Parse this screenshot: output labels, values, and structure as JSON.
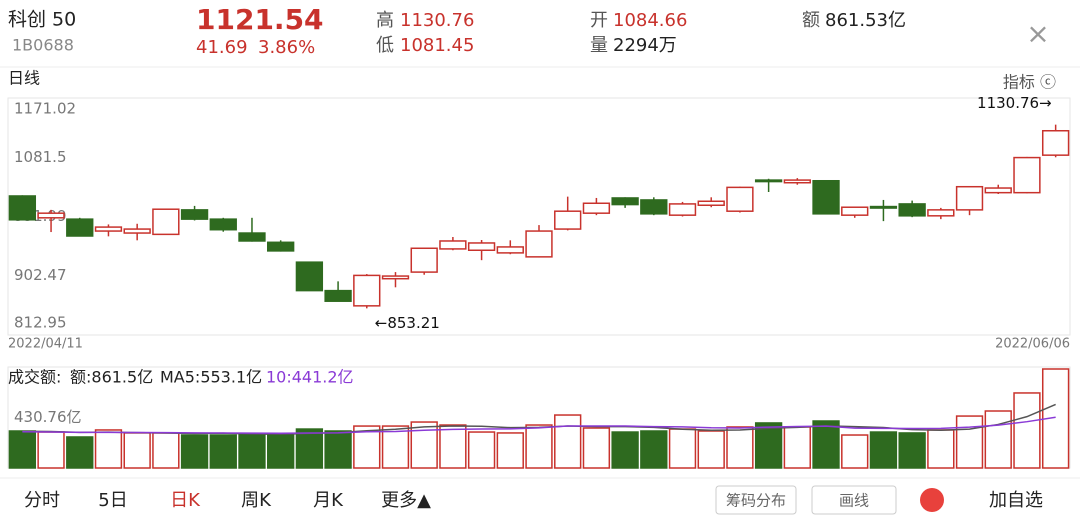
{
  "header": {
    "name": "科创 50",
    "code": "1B0688",
    "price": "1121.54",
    "change": "41.69",
    "change_pct": "3.86%",
    "high_label": "高",
    "high": "1130.76",
    "low_label": "低",
    "low": "1081.45",
    "open_label": "开",
    "open": "1084.66",
    "volume_label": "量",
    "volume": "2294万",
    "amount_label": "额",
    "amount": "861.53亿",
    "close": "×"
  },
  "period_label": "日线",
  "indicator_label": "指标 ⓒ",
  "chart_data": [
    {
      "type": "candlestick",
      "categories": [
        "2022/04/11",
        null,
        null,
        null,
        null,
        null,
        null,
        null,
        null,
        null,
        null,
        null,
        null,
        null,
        null,
        null,
        null,
        null,
        null,
        null,
        null,
        null,
        null,
        null,
        null,
        null,
        null,
        null,
        null,
        null,
        null,
        null,
        null,
        null,
        null,
        null,
        "2022/06/06"
      ],
      "open": [
        1023,
        990,
        988,
        970,
        967,
        965,
        1002,
        988,
        967,
        953,
        923,
        880,
        857,
        898,
        908,
        943,
        941,
        937,
        931,
        973,
        997,
        1020,
        1017,
        994,
        1009,
        1000,
        1047,
        1043,
        1046,
        994,
        1007,
        1011,
        993,
        1002,
        1028,
        1028,
        1084.66
      ],
      "high": [
        1024,
        1002,
        990,
        980,
        981,
        1003,
        1008,
        990,
        990,
        956,
        924,
        894,
        905,
        908,
        945,
        961,
        956.5,
        956,
        979,
        1022,
        1020,
        1021,
        1021,
        1014,
        1021,
        1037,
        1049,
        1050,
        1047,
        1006,
        1017,
        1016,
        1005,
        1037,
        1040,
        1082,
        1130.76
      ],
      "low": [
        986,
        968.5,
        962,
        962,
        956,
        965,
        986,
        969,
        954,
        939,
        880,
        864,
        853.21,
        885,
        904,
        941,
        926,
        935,
        930,
        971,
        994,
        1005,
        994,
        992,
        1006,
        998,
        1029,
        1040,
        996,
        990,
        985,
        991,
        988,
        994,
        1026,
        1027,
        1081.45
      ],
      "close": [
        987,
        997,
        962.5,
        976,
        973,
        1003,
        988,
        972,
        955,
        940,
        880,
        864,
        903,
        902,
        944,
        955,
        952,
        946,
        970,
        1000,
        1012,
        1010,
        996,
        1011,
        1015,
        1036,
        1045,
        1047,
        996,
        1006,
        1005,
        993,
        1002,
        1037,
        1035,
        1081,
        1121.54
      ],
      "ylim": [
        812.95,
        1171.02
      ],
      "yticks": [
        812.95,
        902.47,
        991.99,
        1081.5,
        1171.02
      ],
      "up_color": "#c8322c",
      "down_color": "#2e6a1f",
      "annotations": [
        {
          "label": "1130.76→",
          "index": 36,
          "value": 1130.76
        },
        {
          "label": "←853.21",
          "index": 12,
          "value": 853.21
        }
      ]
    },
    {
      "type": "bar",
      "title": "成交额:",
      "legend_labels": [
        "额:861.5亿",
        "MA5:553.1亿",
        "10:441.2亿"
      ],
      "values": [
        322,
        313,
        270,
        331,
        305,
        305,
        287,
        287,
        296,
        296,
        339,
        322,
        365,
        365,
        400,
        374,
        313,
        305,
        374,
        461,
        348,
        313,
        322,
        339,
        322,
        357,
        392,
        357,
        409,
        287,
        313,
        305,
        331,
        452,
        496,
        653,
        861.53
      ],
      "series": [
        {
          "name": "MA5",
          "color": "#555555",
          "values": [
            320,
            318,
            310,
            312,
            308,
            305,
            300,
            303,
            296,
            294,
            301,
            308,
            324,
            337,
            358,
            365,
            363,
            351,
            353,
            365,
            360,
            360,
            354,
            337,
            329,
            331,
            346,
            353,
            367,
            360,
            352,
            334,
            329,
            338,
            379,
            447,
            553.1
          ]
        },
        {
          "name": "10",
          "color": "#8a3ad6",
          "values": [
            315,
            313,
            310,
            310,
            309,
            308,
            306,
            305,
            304,
            302,
            305,
            306,
            315,
            318,
            328,
            336,
            339,
            341,
            349,
            365,
            366,
            365,
            360,
            358,
            350,
            348,
            356,
            361,
            364,
            347,
            345,
            344,
            345,
            356,
            373,
            403,
            441.2
          ]
        }
      ],
      "ylim": [
        0,
        861.53
      ],
      "yticks": [
        {
          "value": 430.76,
          "label": "430.76亿"
        }
      ]
    }
  ],
  "tabs": [
    "分时",
    "5日",
    "日K",
    "周K",
    "月K",
    "更多▲"
  ],
  "active_tab": 2,
  "buttons": [
    "筹码分布",
    "画线",
    "加自选"
  ]
}
